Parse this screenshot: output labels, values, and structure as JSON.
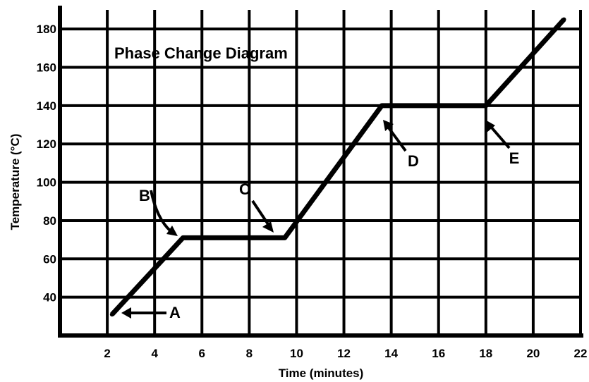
{
  "chart_data": {
    "type": "line",
    "title": "Phase Change Diagram",
    "xlabel": "Time (minutes)",
    "ylabel": "Temperature (°C)",
    "xlim": [
      0,
      22
    ],
    "ylim": [
      20,
      190
    ],
    "grid": true,
    "x_ticks": [
      2,
      4,
      6,
      8,
      10,
      12,
      14,
      16,
      18,
      20,
      22
    ],
    "x_tick_labels": [
      "2",
      "4",
      "6",
      "8",
      "10",
      "12",
      "14",
      "16",
      "18",
      "20",
      "22"
    ],
    "y_ticks": [
      40,
      60,
      80,
      100,
      120,
      140,
      160,
      180
    ],
    "y_tick_labels": [
      "40",
      "60",
      "80",
      "100",
      "120",
      "140",
      "160",
      "180"
    ],
    "series": [
      {
        "x": [
          2.2,
          5.2,
          9.5,
          13.6,
          18.0,
          21.3
        ],
        "y": [
          31,
          71,
          71,
          140,
          140,
          185
        ]
      }
    ],
    "annotations": [
      {
        "label": "A",
        "x": 2.5,
        "y": 32
      },
      {
        "label": "B",
        "x": 4.9,
        "y": 74
      },
      {
        "label": "C",
        "x": 9.0,
        "y": 74
      },
      {
        "label": "D",
        "x": 13.7,
        "y": 138
      },
      {
        "label": "E",
        "x": 18.0,
        "y": 138
      }
    ]
  }
}
